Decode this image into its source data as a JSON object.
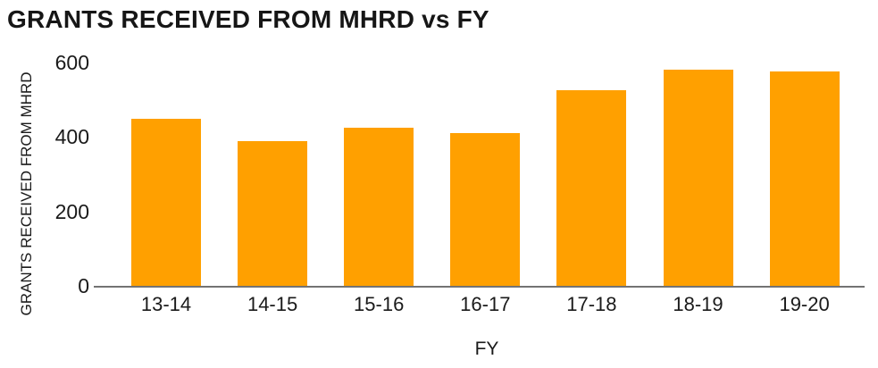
{
  "chart_data": {
    "type": "bar",
    "title": "GRANTS RECEIVED FROM MHRD vs FY",
    "xlabel": "FY",
    "ylabel": "GRANTS RECEIVED FROM MHRD",
    "categories": [
      "13-14",
      "14-15",
      "15-16",
      "16-17",
      "17-18",
      "18-19",
      "19-20"
    ],
    "values": [
      450,
      390,
      425,
      410,
      525,
      580,
      575
    ],
    "ylim": [
      0,
      600
    ],
    "yticks": [
      0,
      200,
      400,
      600
    ],
    "grid": false,
    "legend": "none",
    "bar_color": "#FFA000",
    "axis_line_color": "#737373",
    "text_color": "#1A1A1A"
  }
}
